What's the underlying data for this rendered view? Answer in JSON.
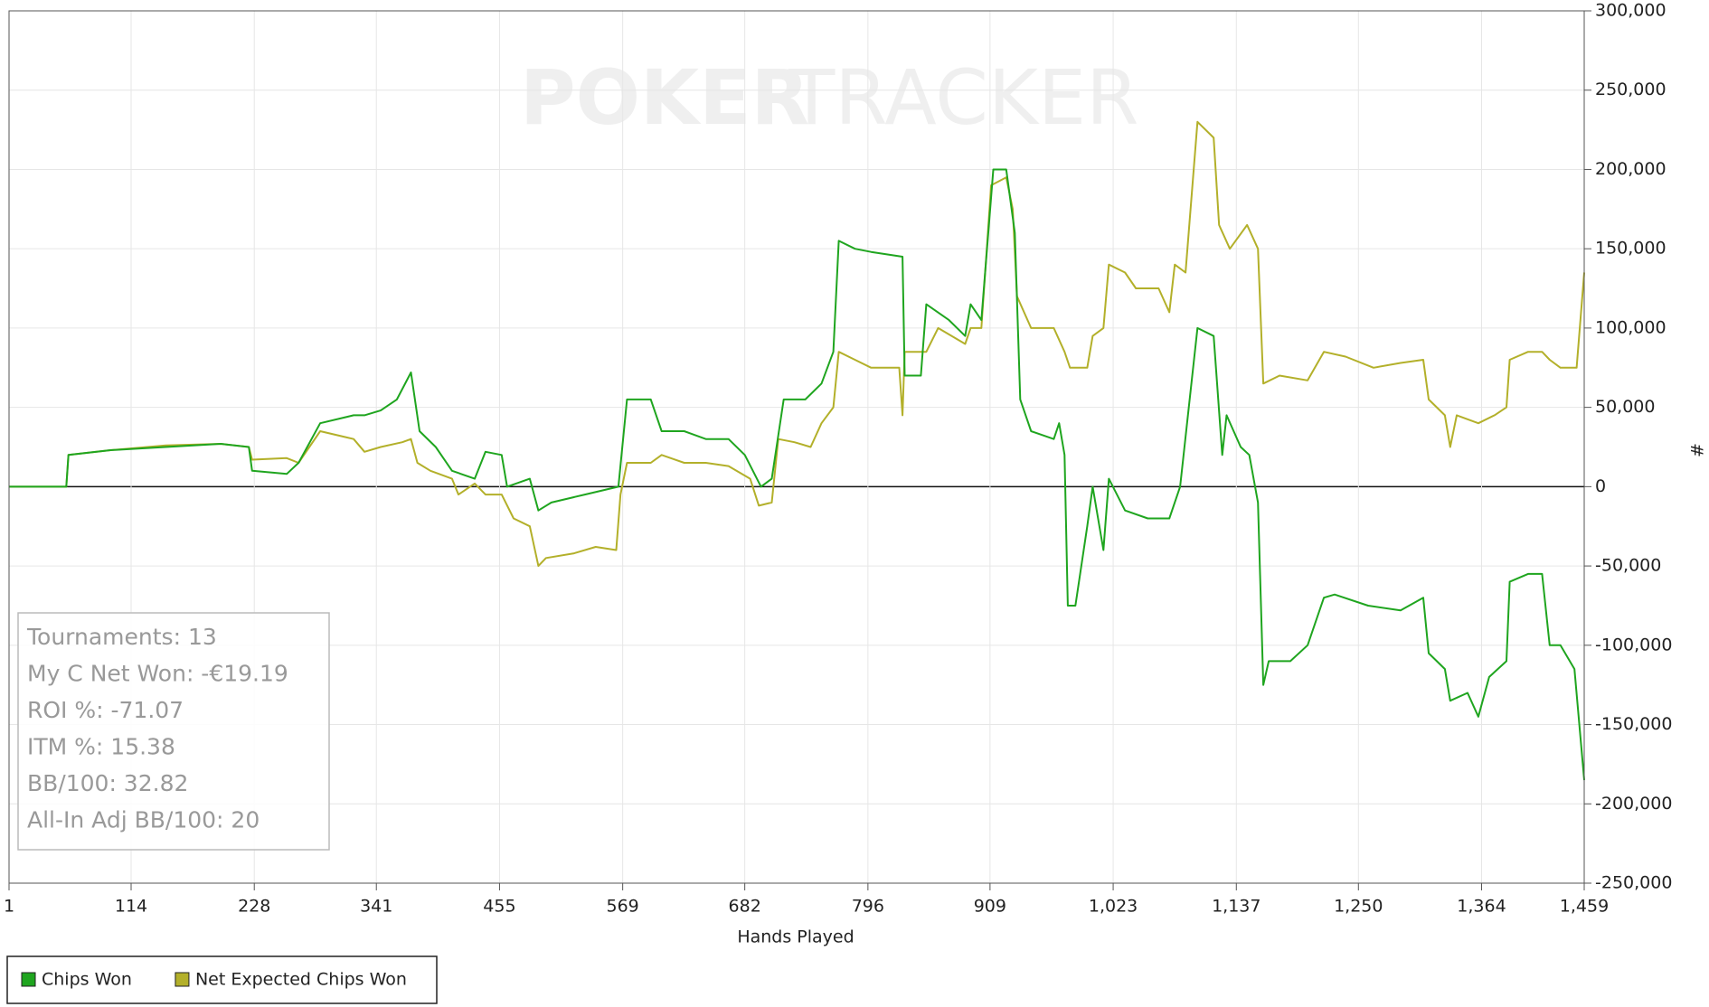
{
  "chart_data": {
    "type": "line",
    "x_label": "Hands Played",
    "y_label": "#",
    "watermark": [
      "POKER",
      "TRACKER"
    ],
    "annotations": [
      "Tournaments: 13",
      "My C Net Won: -€19.19",
      "ROI %: -71.07",
      "ITM %: 15.38",
      "BB/100: 32.82",
      "All-In Adj BB/100: 20"
    ],
    "xlim": [
      1,
      1459
    ],
    "ylim": [
      -250000,
      300000
    ],
    "grid": true,
    "legend": "bottom-left",
    "xticks": [
      1,
      114,
      228,
      341,
      455,
      569,
      682,
      796,
      909,
      {
        "value": 1023,
        "label": "1,023"
      },
      {
        "value": 1137,
        "label": "1,137"
      },
      {
        "value": 1250,
        "label": "1,250"
      },
      {
        "value": 1364,
        "label": "1,364"
      },
      {
        "value": 1459,
        "label": "1,459"
      }
    ],
    "yticks": [
      {
        "value": -250000,
        "label": "-250,000"
      },
      {
        "value": -200000,
        "label": "-200,000"
      },
      {
        "value": -150000,
        "label": "-150,000"
      },
      {
        "value": -100000,
        "label": "-100,000"
      },
      {
        "value": -50000,
        "label": "-50,000"
      },
      0,
      {
        "value": 50000,
        "label": "50,000"
      },
      {
        "value": 100000,
        "label": "100,000"
      },
      {
        "value": 150000,
        "label": "150,000"
      },
      {
        "value": 200000,
        "label": "200,000"
      },
      {
        "value": 250000,
        "label": "250,000"
      },
      {
        "value": 300000,
        "label": "300,000"
      }
    ],
    "series": [
      {
        "name": "Chips Won",
        "color": "#1fa51f",
        "x": [
          1,
          54,
          56,
          95,
          146,
          197,
          223,
          226,
          258,
          269,
          289,
          320,
          330,
          345,
          360,
          373,
          381,
          396,
          411,
          432,
          442,
          457,
          462,
          483,
          491,
          503,
          534,
          565,
          573,
          595,
          605,
          626,
          646,
          667,
          682,
          697,
          707,
          718,
          738,
          753,
          764,
          769,
          784,
          799,
          828,
          830,
          845,
          850,
          871,
          886,
          891,
          901,
          912,
          924,
          932,
          937,
          947,
          968,
          973,
          978,
          981,
          988,
          999,
          1004,
          1014,
          1019,
          1034,
          1055,
          1075,
          1085,
          1101,
          1116,
          1124,
          1128,
          1141,
          1149,
          1157,
          1162,
          1167,
          1187,
          1203,
          1218,
          1228,
          1259,
          1289,
          1310,
          1315,
          1330,
          1335,
          1351,
          1361,
          1371,
          1387,
          1390,
          1407,
          1420,
          1427,
          1437,
          1450,
          1459
        ],
        "values": [
          0,
          0,
          20000,
          23000,
          25000,
          27000,
          25000,
          10000,
          8000,
          15000,
          40000,
          45000,
          45000,
          48000,
          55000,
          72000,
          35000,
          25000,
          10000,
          5000,
          22000,
          20000,
          0,
          5000,
          -15000,
          -10000,
          -5000,
          0,
          55000,
          55000,
          35000,
          35000,
          30000,
          30000,
          20000,
          0,
          5000,
          55000,
          55000,
          65000,
          85000,
          155000,
          150000,
          148000,
          145000,
          70000,
          70000,
          115000,
          105000,
          95000,
          115000,
          105000,
          200000,
          200000,
          160000,
          55000,
          35000,
          30000,
          40000,
          20000,
          -75000,
          -75000,
          -25000,
          0,
          -40000,
          5000,
          -15000,
          -20000,
          -20000,
          0,
          100000,
          95000,
          20000,
          45000,
          25000,
          20000,
          -10000,
          -125000,
          -110000,
          -110000,
          -100000,
          -70000,
          -68000,
          -75000,
          -78000,
          -70000,
          -105000,
          -115000,
          -135000,
          -130000,
          -145000,
          -120000,
          -110000,
          -60000,
          -55000,
          -55000,
          -100000,
          -100000,
          -115000,
          -185000
        ]
      },
      {
        "name": "Net Expected Chips Won",
        "color": "#b3b02a",
        "x": [
          1,
          54,
          56,
          95,
          146,
          197,
          223,
          226,
          258,
          269,
          289,
          320,
          330,
          345,
          365,
          373,
          379,
          391,
          411,
          417,
          432,
          442,
          457,
          468,
          483,
          491,
          498,
          524,
          544,
          563,
          567,
          573,
          595,
          605,
          626,
          646,
          667,
          687,
          695,
          707,
          713,
          728,
          743,
          753,
          764,
          769,
          784,
          799,
          825,
          828,
          830,
          850,
          861,
          886,
          891,
          901,
          910,
          924,
          930,
          934,
          947,
          968,
          978,
          983,
          999,
          1004,
          1014,
          1019,
          1034,
          1044,
          1065,
          1075,
          1080,
          1090,
          1101,
          1116,
          1121,
          1131,
          1147,
          1157,
          1162,
          1177,
          1203,
          1218,
          1238,
          1264,
          1289,
          1310,
          1315,
          1330,
          1335,
          1341,
          1361,
          1376,
          1387,
          1390,
          1407,
          1420,
          1427,
          1437,
          1452,
          1459
        ],
        "values": [
          0,
          0,
          20000,
          23000,
          26000,
          27000,
          25000,
          17000,
          18000,
          15000,
          35000,
          30000,
          22000,
          25000,
          28000,
          30000,
          15000,
          10000,
          5000,
          -5000,
          2000,
          -5000,
          -5000,
          -20000,
          -25000,
          -50000,
          -45000,
          -42000,
          -38000,
          -40000,
          -5000,
          15000,
          15000,
          20000,
          15000,
          15000,
          13000,
          5000,
          -12000,
          -10000,
          30000,
          28000,
          25000,
          40000,
          50000,
          85000,
          80000,
          75000,
          75000,
          45000,
          85000,
          85000,
          100000,
          90000,
          100000,
          100000,
          190000,
          195000,
          175000,
          120000,
          100000,
          100000,
          85000,
          75000,
          75000,
          95000,
          100000,
          140000,
          135000,
          125000,
          125000,
          110000,
          140000,
          135000,
          230000,
          220000,
          165000,
          150000,
          165000,
          150000,
          65000,
          70000,
          67000,
          85000,
          82000,
          75000,
          78000,
          80000,
          55000,
          45000,
          25000,
          45000,
          40000,
          45000,
          50000,
          80000,
          85000,
          85000,
          80000,
          75000,
          75000,
          135000
        ]
      }
    ]
  }
}
